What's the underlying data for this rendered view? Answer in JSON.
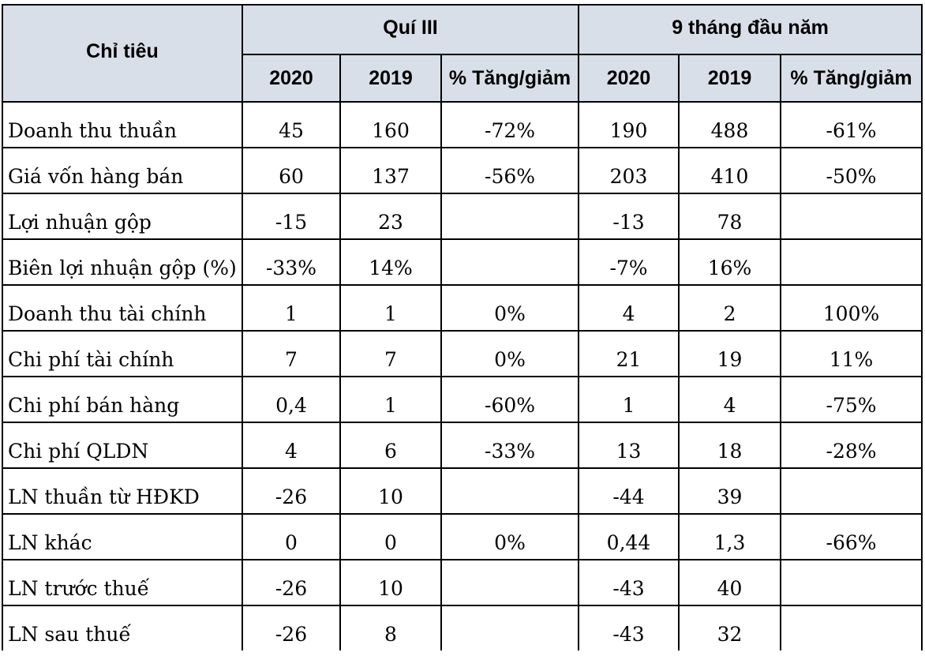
{
  "header": {
    "indicator": "Chỉ tiêu",
    "groups": [
      "Quí III",
      "9 tháng đầu năm"
    ],
    "subcolumns": [
      "2020",
      "2019",
      "% Tăng/giảm",
      "2020",
      "2019",
      "% Tăng/giảm"
    ]
  },
  "rows": [
    {
      "label": "Doanh thu thuần",
      "cells": [
        "45",
        "160",
        "-72%",
        "190",
        "488",
        "-61%"
      ]
    },
    {
      "label": "Giá vốn hàng bán",
      "cells": [
        "60",
        "137",
        "-56%",
        "203",
        "410",
        "-50%"
      ]
    },
    {
      "label": "Lợi nhuận gộp",
      "cells": [
        "-15",
        "23",
        "",
        "-13",
        "78",
        ""
      ]
    },
    {
      "label": "Biên lợi nhuận gộp (%)",
      "cells": [
        "-33%",
        "14%",
        "",
        "-7%",
        "16%",
        ""
      ]
    },
    {
      "label": "Doanh thu tài chính",
      "cells": [
        "1",
        "1",
        "0%",
        "4",
        "2",
        "100%"
      ]
    },
    {
      "label": "Chi phí tài chính",
      "cells": [
        "7",
        "7",
        "0%",
        "21",
        "19",
        "11%"
      ]
    },
    {
      "label": "Chi phí bán hàng",
      "cells": [
        "0,4",
        "1",
        "-60%",
        "1",
        "4",
        "-75%"
      ]
    },
    {
      "label": "Chi phí QLDN",
      "cells": [
        "4",
        "6",
        "-33%",
        "13",
        "18",
        "-28%"
      ]
    },
    {
      "label": "LN thuần từ HĐKD",
      "cells": [
        "-26",
        "10",
        "",
        "-44",
        "39",
        ""
      ]
    },
    {
      "label": "LN khác",
      "cells": [
        "0",
        "0",
        "0%",
        "0,44",
        "1,3",
        "-66%"
      ]
    },
    {
      "label": "LN trước thuế",
      "cells": [
        "-26",
        "10",
        "",
        "-43",
        "40",
        ""
      ]
    },
    {
      "label": "LN sau thuế",
      "cells": [
        "-26",
        "8",
        "",
        "-43",
        "32",
        ""
      ]
    }
  ]
}
